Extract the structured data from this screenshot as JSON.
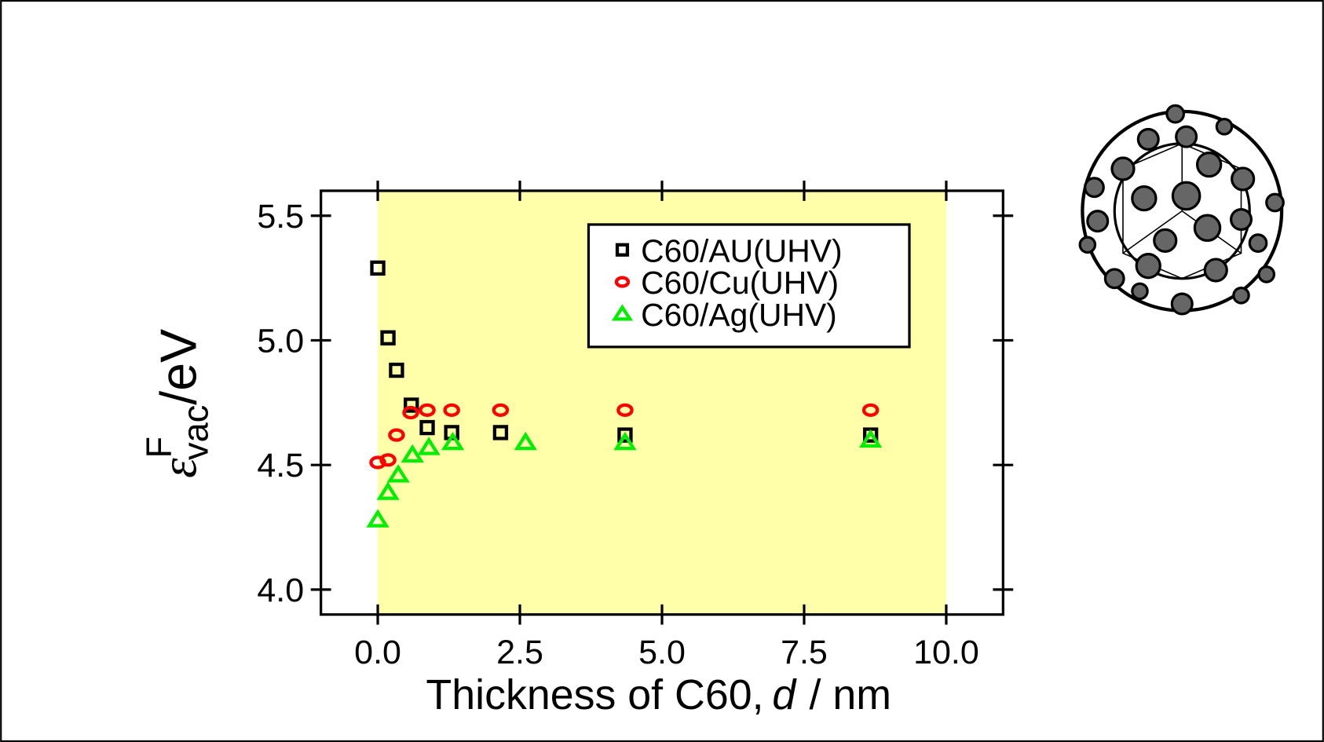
{
  "chart_data": {
    "type": "scatter",
    "x_label": {
      "prefix": "Thickness of C60,",
      "variable": "d",
      "suffix": "/ nm"
    },
    "y_label": {
      "symbol": "ε",
      "superscript": "F",
      "subscript": "vac",
      "unit": "/eV"
    },
    "xlim": [
      -1,
      11
    ],
    "ylim": [
      3.9,
      5.6
    ],
    "xticks": [
      {
        "value": 0,
        "label": "0.0"
      },
      {
        "value": 2.5,
        "label": "2.5"
      },
      {
        "value": 5,
        "label": "5.0"
      },
      {
        "value": 7.5,
        "label": "7.5"
      },
      {
        "value": 10,
        "label": "10.0"
      }
    ],
    "yticks": [
      {
        "value": 4,
        "label": "4.0"
      },
      {
        "value": 4.5,
        "label": "4.5"
      },
      {
        "value": 5,
        "label": "5.0"
      },
      {
        "value": 5.5,
        "label": "5.5"
      }
    ],
    "shaded_xrange": [
      0,
      10
    ],
    "shade_color": "#ffffaa",
    "legend_position": "upper right",
    "series": [
      {
        "name": "C60/AU(UHV)",
        "color": "#000000",
        "marker": "square",
        "x": [
          0,
          0.18,
          0.33,
          0.59,
          0.87,
          1.3,
          2.16,
          4.35,
          8.67
        ],
        "values": [
          5.29,
          5.01,
          4.88,
          4.74,
          4.65,
          4.63,
          4.63,
          4.62,
          4.62
        ]
      },
      {
        "name": "C60/Cu(UHV)",
        "color": "#ff0000",
        "marker": "circle",
        "x": [
          0,
          0.18,
          0.33,
          0.58,
          0.87,
          1.3,
          2.16,
          4.35,
          8.67
        ],
        "values": [
          4.51,
          4.52,
          4.62,
          4.71,
          4.72,
          4.72,
          4.72,
          4.72,
          4.72
        ]
      },
      {
        "name": "C60/Ag(UHV)",
        "color": "#00ee00",
        "marker": "triangle",
        "x": [
          0,
          0.18,
          0.36,
          0.61,
          0.9,
          1.32,
          2.6,
          4.35,
          8.67
        ],
        "values": [
          4.28,
          4.39,
          4.46,
          4.54,
          4.57,
          4.59,
          4.59,
          4.59,
          4.6
        ]
      }
    ]
  }
}
